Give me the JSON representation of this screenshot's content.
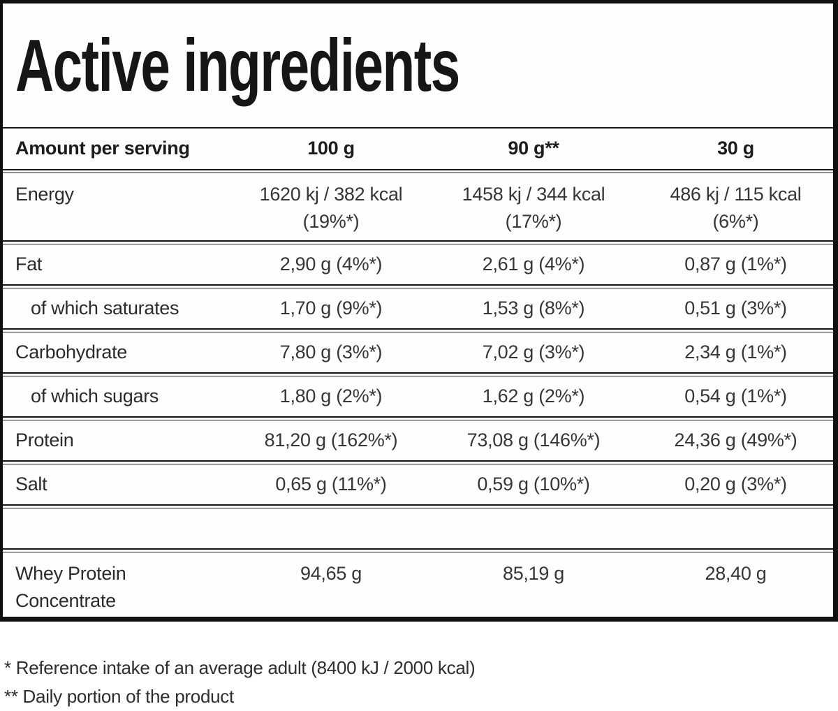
{
  "title": "Active ingredients",
  "table": {
    "header": {
      "label": "Amount per serving",
      "columns": [
        "100 g",
        "90 g**",
        "30 g"
      ]
    },
    "rows": [
      {
        "id": "energy",
        "label": "Energy",
        "two_line": true,
        "values": [
          [
            "1620 kj / 382 kcal",
            "(19%*)"
          ],
          [
            "1458 kj / 344 kcal",
            "(17%*)"
          ],
          [
            "486 kj / 115 kcal",
            "(6%*)"
          ]
        ]
      },
      {
        "id": "fat",
        "label": "Fat",
        "values": [
          "2,90 g (4%*)",
          "2,61 g (4%*)",
          "0,87 g (1%*)"
        ]
      },
      {
        "id": "saturates",
        "label": "of which saturates",
        "indent": true,
        "values": [
          "1,70 g (9%*)",
          "1,53 g (8%*)",
          "0,51 g (3%*)"
        ]
      },
      {
        "id": "carbohydrate",
        "label": "Carbohydrate",
        "values": [
          "7,80 g (3%*)",
          "7,02 g (3%*)",
          "2,34 g (1%*)"
        ]
      },
      {
        "id": "sugars",
        "label": "of which sugars",
        "indent": true,
        "values": [
          "1,80 g (2%*)",
          "1,62 g (2%*)",
          "0,54 g (1%*)"
        ]
      },
      {
        "id": "protein",
        "label": "Protein",
        "values": [
          "81,20 g (162%*)",
          "73,08 g (146%*)",
          "24,36 g (49%*)"
        ]
      },
      {
        "id": "salt",
        "label": "Salt",
        "values": [
          "0,65 g (11%*)",
          "0,59 g (10%*)",
          "0,20 g (3%*)"
        ]
      },
      {
        "id": "spacer",
        "label": "",
        "empty": true,
        "values": [
          "",
          "",
          ""
        ]
      },
      {
        "id": "whey-protein-concentrate",
        "label": "Whey Protein Concentrate",
        "whey": true,
        "values": [
          "94,65 g",
          "85,19 g",
          "28,40 g"
        ]
      }
    ]
  },
  "footnotes": [
    "* Reference intake of an average adult (8400 kJ / 2000 kcal)",
    "** Daily portion of the product"
  ]
}
